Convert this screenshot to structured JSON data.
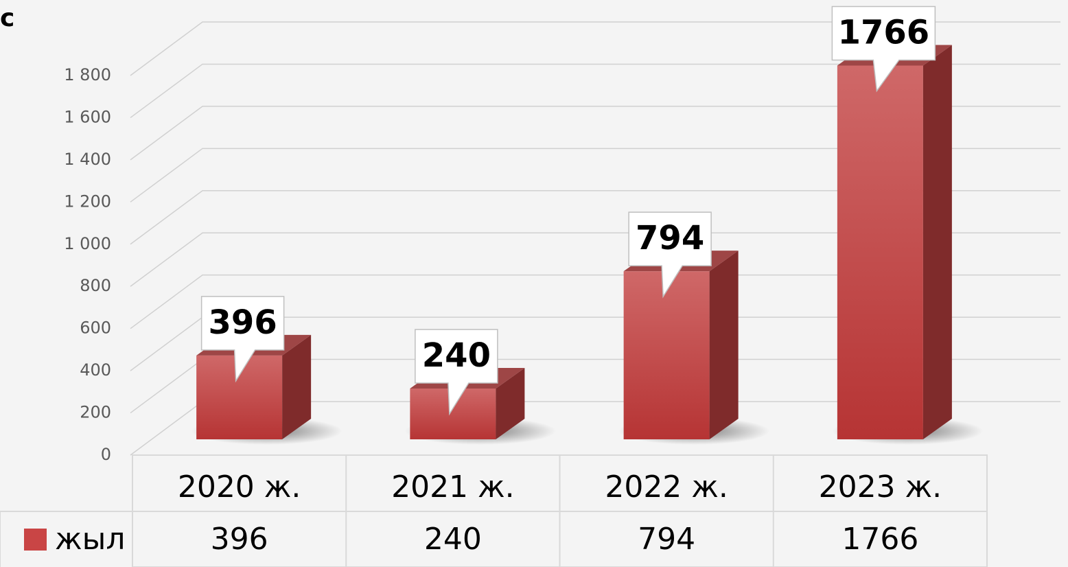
{
  "chart_data": {
    "type": "bar3d",
    "title": "с",
    "categories": [
      "2020 ж.",
      "2021 ж.",
      "2022 ж.",
      "2023 ж."
    ],
    "series": [
      {
        "name": "жыл",
        "color": "#c94545",
        "values": [
          396,
          240,
          794,
          1766
        ]
      }
    ],
    "ylim": [
      0,
      1800
    ],
    "yticks": [
      0,
      200,
      400,
      600,
      800,
      {
        "value": 1000,
        "label": "1 000"
      },
      {
        "value": 1200,
        "label": "1 200"
      },
      {
        "value": 1400,
        "label": "1 400"
      },
      {
        "value": 1600,
        "label": "1 600"
      },
      {
        "value": 1800,
        "label": "1 800"
      }
    ],
    "grid": true,
    "data_table": true
  }
}
